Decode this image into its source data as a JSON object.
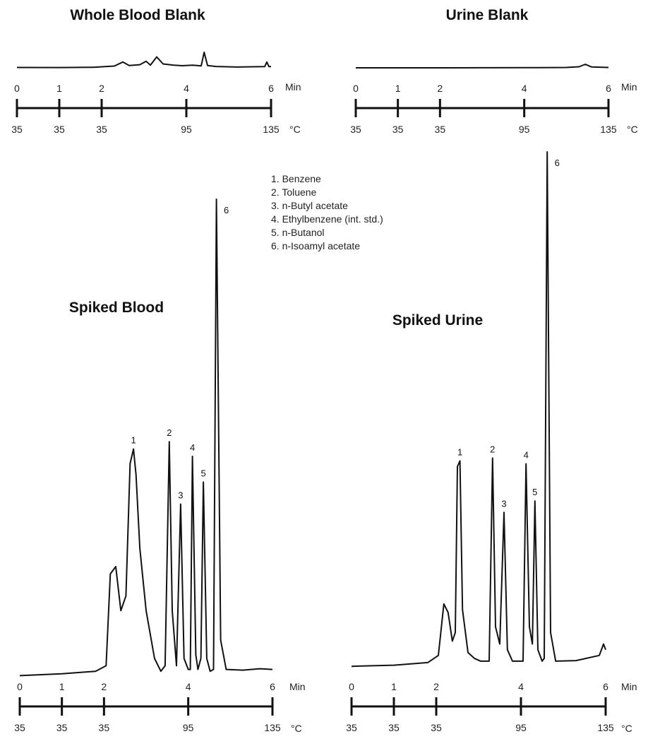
{
  "chart_data": [
    {
      "type": "line",
      "title": "Whole Blood Blank",
      "x_unit": "Min",
      "temp_unit": "°C",
      "x_ticks": [
        0,
        1,
        2,
        4,
        6
      ],
      "x_tick_labels": [
        "0",
        "1",
        "2",
        "4",
        "6"
      ],
      "temp_ticks": [
        "35",
        "35",
        "35",
        "95",
        "135"
      ],
      "xlim": [
        0,
        6
      ],
      "trace": [
        [
          0,
          0.1
        ],
        [
          1.0,
          0.08
        ],
        [
          1.8,
          0.15
        ],
        [
          2.3,
          0.45
        ],
        [
          2.5,
          1.5
        ],
        [
          2.65,
          0.6
        ],
        [
          2.9,
          0.8
        ],
        [
          3.05,
          1.7
        ],
        [
          3.15,
          0.7
        ],
        [
          3.3,
          2.8
        ],
        [
          3.45,
          1.0
        ],
        [
          3.7,
          0.7
        ],
        [
          3.9,
          0.55
        ],
        [
          4.15,
          0.7
        ],
        [
          4.35,
          0.5
        ],
        [
          4.42,
          4.0
        ],
        [
          4.5,
          0.6
        ],
        [
          4.7,
          0.35
        ],
        [
          5.2,
          0.2
        ],
        [
          5.85,
          0.3
        ],
        [
          5.9,
          1.5
        ],
        [
          5.95,
          0.3
        ],
        [
          6.0,
          0.3
        ]
      ]
    },
    {
      "type": "line",
      "title": "Urine Blank",
      "x_unit": "Min",
      "temp_unit": "°C",
      "x_ticks": [
        0,
        1,
        2,
        4,
        6
      ],
      "x_tick_labels": [
        "0",
        "1",
        "2",
        "4",
        "6"
      ],
      "temp_ticks": [
        "35",
        "35",
        "35",
        "95",
        "135"
      ],
      "xlim": [
        0,
        6
      ],
      "trace": [
        [
          0,
          0.0
        ],
        [
          2.0,
          0.0
        ],
        [
          4.0,
          0.05
        ],
        [
          5.0,
          0.1
        ],
        [
          5.3,
          0.3
        ],
        [
          5.45,
          1.0
        ],
        [
          5.6,
          0.25
        ],
        [
          6.0,
          0.1
        ]
      ]
    },
    {
      "type": "line",
      "title": "Spiked Blood",
      "x_unit": "Min",
      "temp_unit": "°C",
      "x_ticks": [
        0,
        1,
        2,
        4,
        6
      ],
      "x_tick_labels": [
        "0",
        "1",
        "2",
        "4",
        "6"
      ],
      "temp_ticks": [
        "35",
        "35",
        "35",
        "95",
        "135"
      ],
      "xlim": [
        0,
        6
      ],
      "trace": [
        [
          0,
          0.3
        ],
        [
          1.0,
          0.8
        ],
        [
          1.8,
          1.5
        ],
        [
          2.05,
          3
        ],
        [
          2.15,
          28
        ],
        [
          2.28,
          30
        ],
        [
          2.4,
          18
        ],
        [
          2.52,
          22
        ],
        [
          2.62,
          58
        ],
        [
          2.7,
          62
        ],
        [
          2.76,
          55
        ],
        [
          2.85,
          35
        ],
        [
          3.0,
          18
        ],
        [
          3.2,
          5
        ],
        [
          3.35,
          1.5
        ],
        [
          3.45,
          3
        ],
        [
          3.55,
          64
        ],
        [
          3.62,
          18
        ],
        [
          3.72,
          3
        ],
        [
          3.82,
          47
        ],
        [
          3.9,
          5
        ],
        [
          4.0,
          2
        ],
        [
          4.05,
          2
        ],
        [
          4.1,
          60
        ],
        [
          4.18,
          6
        ],
        [
          4.23,
          2
        ],
        [
          4.3,
          5
        ],
        [
          4.36,
          53
        ],
        [
          4.44,
          5
        ],
        [
          4.52,
          1.5
        ],
        [
          4.6,
          2
        ],
        [
          4.67,
          130
        ],
        [
          4.77,
          10
        ],
        [
          4.9,
          2
        ],
        [
          5.3,
          1.8
        ],
        [
          5.7,
          2.2
        ],
        [
          6.0,
          2
        ]
      ],
      "peak_labels": [
        {
          "label": "1",
          "x": 2.7
        },
        {
          "label": "2",
          "x": 3.55
        },
        {
          "label": "3",
          "x": 3.82
        },
        {
          "label": "4",
          "x": 4.1
        },
        {
          "label": "5",
          "x": 4.36
        },
        {
          "label": "6",
          "x": 4.67
        }
      ]
    },
    {
      "type": "line",
      "title": "Spiked Urine",
      "x_unit": "Min",
      "temp_unit": "°C",
      "x_ticks": [
        0,
        1,
        2,
        4,
        6
      ],
      "x_tick_labels": [
        "0",
        "1",
        "2",
        "4",
        "6"
      ],
      "temp_ticks": [
        "35",
        "35",
        "35",
        "95",
        "135"
      ],
      "xlim": [
        0,
        6
      ],
      "trace": [
        [
          0,
          0.2
        ],
        [
          1.0,
          0.6
        ],
        [
          1.8,
          1.5
        ],
        [
          2.05,
          4
        ],
        [
          2.18,
          22
        ],
        [
          2.28,
          19
        ],
        [
          2.38,
          9
        ],
        [
          2.45,
          12
        ],
        [
          2.5,
          70
        ],
        [
          2.56,
          72
        ],
        [
          2.62,
          20
        ],
        [
          2.75,
          5
        ],
        [
          2.9,
          3
        ],
        [
          3.05,
          2
        ],
        [
          3.25,
          2
        ],
        [
          3.33,
          73
        ],
        [
          3.4,
          14
        ],
        [
          3.5,
          8
        ],
        [
          3.6,
          54
        ],
        [
          3.68,
          6
        ],
        [
          3.8,
          2
        ],
        [
          4.05,
          2
        ],
        [
          4.12,
          71
        ],
        [
          4.2,
          14
        ],
        [
          4.27,
          8
        ],
        [
          4.33,
          58
        ],
        [
          4.4,
          6
        ],
        [
          4.5,
          2
        ],
        [
          4.55,
          3
        ],
        [
          4.62,
          180
        ],
        [
          4.7,
          12
        ],
        [
          4.82,
          2
        ],
        [
          5.3,
          2.2
        ],
        [
          5.85,
          4
        ],
        [
          5.95,
          8
        ],
        [
          6.0,
          6
        ]
      ],
      "peak_labels": [
        {
          "label": "1",
          "x": 2.56
        },
        {
          "label": "2",
          "x": 3.33
        },
        {
          "label": "3",
          "x": 3.6
        },
        {
          "label": "4",
          "x": 4.12
        },
        {
          "label": "5",
          "x": 4.33
        },
        {
          "label": "6",
          "x": 4.62
        }
      ]
    }
  ],
  "legend": {
    "items": [
      "1. Benzene",
      "2. Toluene",
      "3. n-Butyl acetate",
      "4. Ethylbenzene (int. std.)",
      "5. n-Butanol",
      "6. n-Isoamyl acetate"
    ]
  },
  "colors": {
    "ink": "#111111",
    "background": "#ffffff"
  }
}
